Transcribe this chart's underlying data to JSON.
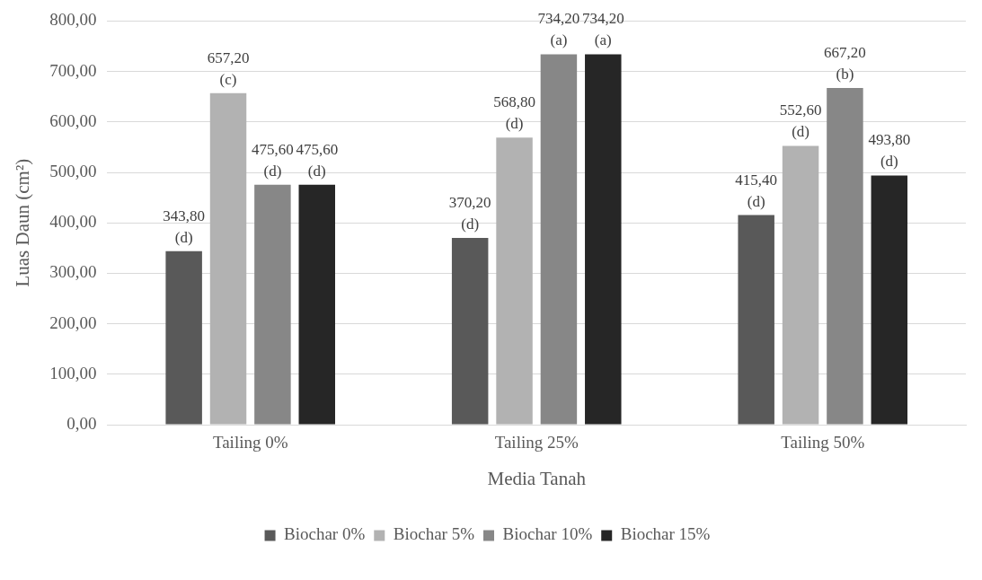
{
  "chart_data": {
    "type": "bar",
    "xlabel": "Media Tanah",
    "ylabel": "Luas Daun (cm²)",
    "categories": [
      "Tailing 0%",
      "Tailing 25%",
      "Tailing 50%"
    ],
    "series": [
      {
        "name": "Biochar 0%",
        "color": "#595959",
        "values": [
          343.8,
          370.2,
          415.4
        ],
        "value_labels": [
          "343,80\n(d)",
          "370,20\n(d)",
          "415,40\n(d)"
        ]
      },
      {
        "name": "Biochar 5%",
        "color": "#b2b2b2",
        "values": [
          657.2,
          568.8,
          552.6
        ],
        "value_labels": [
          "657,20\n(c)",
          "568,80\n(d)",
          "552,60\n(d)"
        ]
      },
      {
        "name": "Biochar 10%",
        "color": "#878787",
        "values": [
          475.6,
          734.2,
          667.2
        ],
        "value_labels": [
          "475,60\n(d)",
          "734,20\n(a)",
          "667,20\n(b)"
        ]
      },
      {
        "name": "Biochar 15%",
        "color": "#262626",
        "values": [
          475.6,
          734.2,
          493.8
        ],
        "value_labels": [
          "475,60\n(d)",
          "734,20\n(a)",
          "493,80\n(d)"
        ]
      }
    ],
    "ylim": [
      0,
      800
    ],
    "yticks": [
      {
        "value": 0,
        "label": "0,00"
      },
      {
        "value": 100,
        "label": "100,00"
      },
      {
        "value": 200,
        "label": "200,00"
      },
      {
        "value": 300,
        "label": "300,00"
      },
      {
        "value": 400,
        "label": "400,00"
      },
      {
        "value": 500,
        "label": "500,00"
      },
      {
        "value": 600,
        "label": "600,00"
      },
      {
        "value": 700,
        "label": "700,00"
      },
      {
        "value": 800,
        "label": "800,00"
      }
    ],
    "grid": "y",
    "legend": "bottom"
  }
}
